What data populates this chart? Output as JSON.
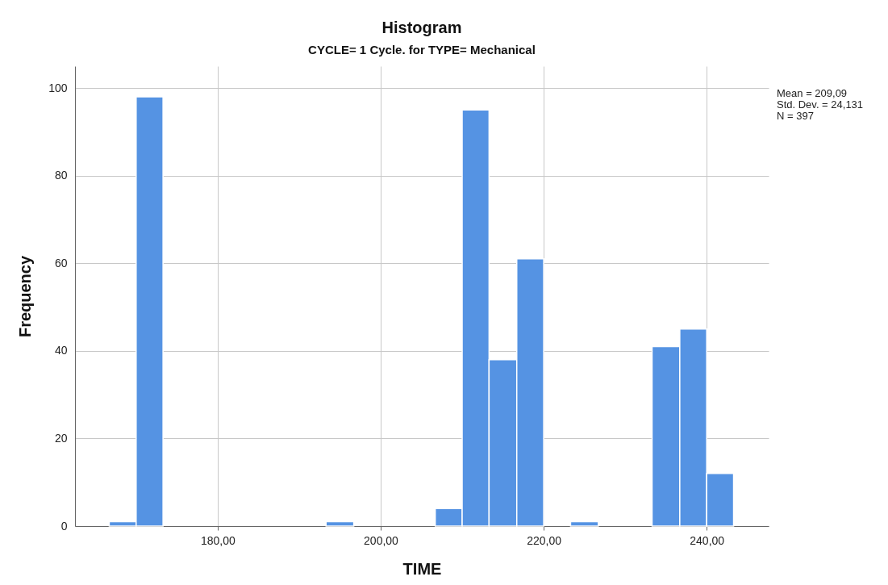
{
  "chart_data": {
    "type": "histogram",
    "title": "Histogram",
    "subtitle": "CYCLE= 1 Cycle.  for TYPE= Mechanical",
    "xlabel": "TIME",
    "ylabel": "Frequency",
    "annotations": [
      "Mean = 209,09",
      "Std. Dev. = 24,131",
      "N = 397"
    ],
    "bins": [
      166.7,
      170.0,
      173.3,
      193.3,
      196.7,
      206.7,
      210.0,
      213.3,
      216.7,
      220.0,
      223.3,
      226.7,
      233.3,
      236.7,
      240.0,
      243.3
    ],
    "values": [
      1,
      98,
      0,
      1,
      0,
      4,
      95,
      38,
      61,
      0,
      1,
      0,
      41,
      45,
      12
    ],
    "color": "#5593e3",
    "xlim": [
      162.5,
      247.6
    ],
    "xticks": [
      {
        "value": 180,
        "label": "180,00"
      },
      {
        "value": 200,
        "label": "200,00"
      },
      {
        "value": 220,
        "label": "220,00"
      },
      {
        "value": 240,
        "label": "240,00"
      }
    ],
    "ylim": [
      0,
      105
    ],
    "yticks": [
      0,
      20,
      40,
      60,
      80,
      100
    ],
    "grid": true
  }
}
